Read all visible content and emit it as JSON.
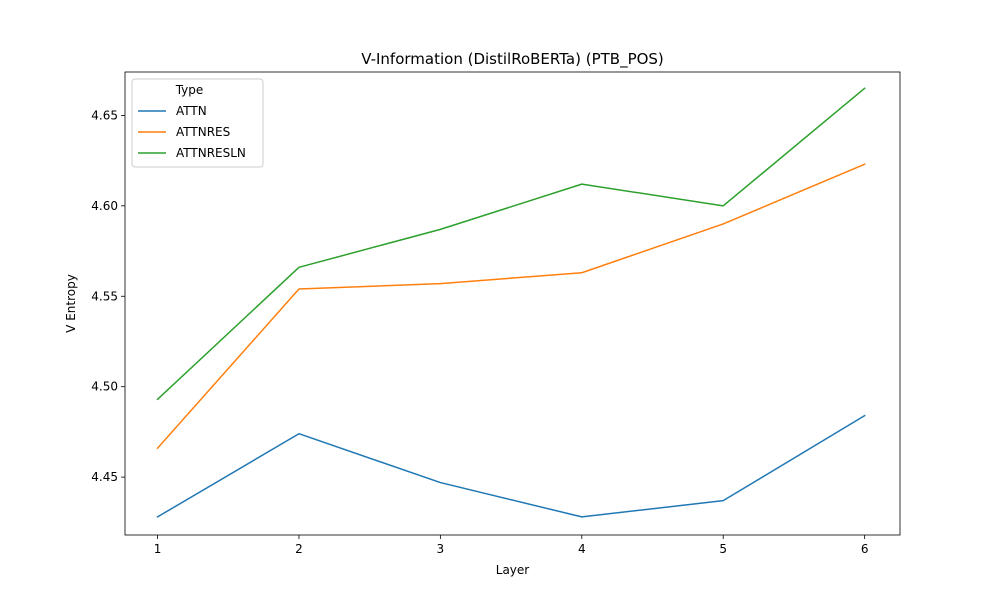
{
  "chart_data": {
    "type": "line",
    "title": "V-Information (DistilRoBERTa) (PTB_POS)",
    "xlabel": "Layer",
    "ylabel": "V Entropy",
    "x": [
      1,
      2,
      3,
      4,
      5,
      6
    ],
    "xticks": [
      "1",
      "2",
      "3",
      "4",
      "5",
      "6"
    ],
    "yticks": [
      "4.45",
      "4.50",
      "4.55",
      "4.60",
      "4.65"
    ],
    "xlim": [
      0.77,
      6.25
    ],
    "ylim": [
      4.418,
      4.674
    ],
    "grid": false,
    "legend": {
      "title": "Type",
      "placement": "top-left"
    },
    "series": [
      {
        "name": "ATTN",
        "color": "#1f77b4",
        "values": [
          4.428,
          4.474,
          4.447,
          4.428,
          4.437,
          4.484
        ]
      },
      {
        "name": "ATTNRES",
        "color": "#ff7f0e",
        "values": [
          4.466,
          4.554,
          4.557,
          4.563,
          4.59,
          4.623
        ]
      },
      {
        "name": "ATTNRESLN",
        "color": "#2ca02c",
        "values": [
          4.493,
          4.566,
          4.587,
          4.612,
          4.6,
          4.665
        ]
      }
    ]
  }
}
